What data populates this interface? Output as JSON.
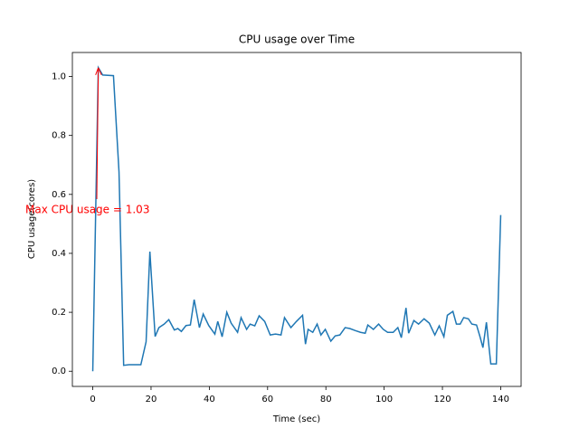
{
  "chart_data": {
    "type": "line",
    "title": "CPU usage over Time",
    "xlabel": "Time (sec)",
    "ylabel": "CPU usage(cores)",
    "annotation": "Max CPU usage = 1.03",
    "annotation_color": "#ff0000",
    "x": [
      0,
      1.9,
      3.4,
      7.1,
      9,
      10.6,
      12.4,
      16.5,
      18.3,
      19.6,
      21.4,
      22.7,
      24.5,
      26.1,
      28,
      29.2,
      30.4,
      32,
      33.5,
      34.8,
      36.6,
      37.9,
      39.8,
      41.9,
      42.9,
      44.4,
      46,
      47.5,
      49.7,
      50.9,
      52.8,
      54,
      55.6,
      57.1,
      59,
      60.9,
      62.7,
      64.6,
      65.8,
      68,
      69.9,
      72,
      73,
      73.9,
      75.5,
      77,
      78.3,
      79.8,
      81.7,
      83.2,
      84.8,
      86.6,
      88.2,
      90.1,
      91.9,
      93.5,
      94.4,
      96.3,
      98.1,
      99.7,
      101.2,
      103.1,
      104.7,
      105.9,
      107.5,
      108.4,
      110.2,
      111.8,
      113.7,
      115.5,
      117.4,
      118.9,
      120.5,
      121.7,
      123.6,
      124.8,
      126.1,
      127.3,
      128.9,
      130.1,
      131.7,
      132.9,
      133.9,
      135.1,
      136.6,
      138.5,
      140
    ],
    "series": [
      {
        "name": "CPU usage",
        "color": "#1f77b4",
        "values": [
          0,
          1.03,
          1.005,
          1.003,
          0.677,
          0.02,
          0.022,
          0.022,
          0.1,
          0.406,
          0.118,
          0.148,
          0.16,
          0.175,
          0.14,
          0.145,
          0.135,
          0.155,
          0.157,
          0.243,
          0.148,
          0.194,
          0.155,
          0.126,
          0.169,
          0.117,
          0.2,
          0.163,
          0.132,
          0.182,
          0.142,
          0.16,
          0.154,
          0.188,
          0.169,
          0.123,
          0.126,
          0.123,
          0.182,
          0.148,
          0.169,
          0.19,
          0.092,
          0.142,
          0.132,
          0.16,
          0.123,
          0.142,
          0.102,
          0.12,
          0.123,
          0.148,
          0.145,
          0.138,
          0.132,
          0.129,
          0.157,
          0.142,
          0.16,
          0.142,
          0.132,
          0.132,
          0.148,
          0.114,
          0.215,
          0.129,
          0.172,
          0.16,
          0.178,
          0.163,
          0.123,
          0.154,
          0.117,
          0.19,
          0.203,
          0.16,
          0.16,
          0.182,
          0.178,
          0.16,
          0.157,
          0.117,
          0.08,
          0.166,
          0.025,
          0.025,
          0.53
        ]
      }
    ],
    "xlim": [
      -7,
      147
    ],
    "xticks": [
      0,
      20,
      40,
      60,
      80,
      100,
      120,
      140
    ],
    "ylim": [
      -0.0515,
      1.0815
    ],
    "yticks": [
      {
        "value": 0,
        "label": "0.0"
      },
      {
        "value": 0.2,
        "label": "0.2"
      },
      {
        "value": 0.4,
        "label": "0.4"
      },
      {
        "value": 0.6,
        "label": "0.6"
      },
      {
        "value": 0.8,
        "label": "0.8"
      },
      {
        "value": 1.0,
        "label": "1.0"
      }
    ],
    "grid": false
  }
}
